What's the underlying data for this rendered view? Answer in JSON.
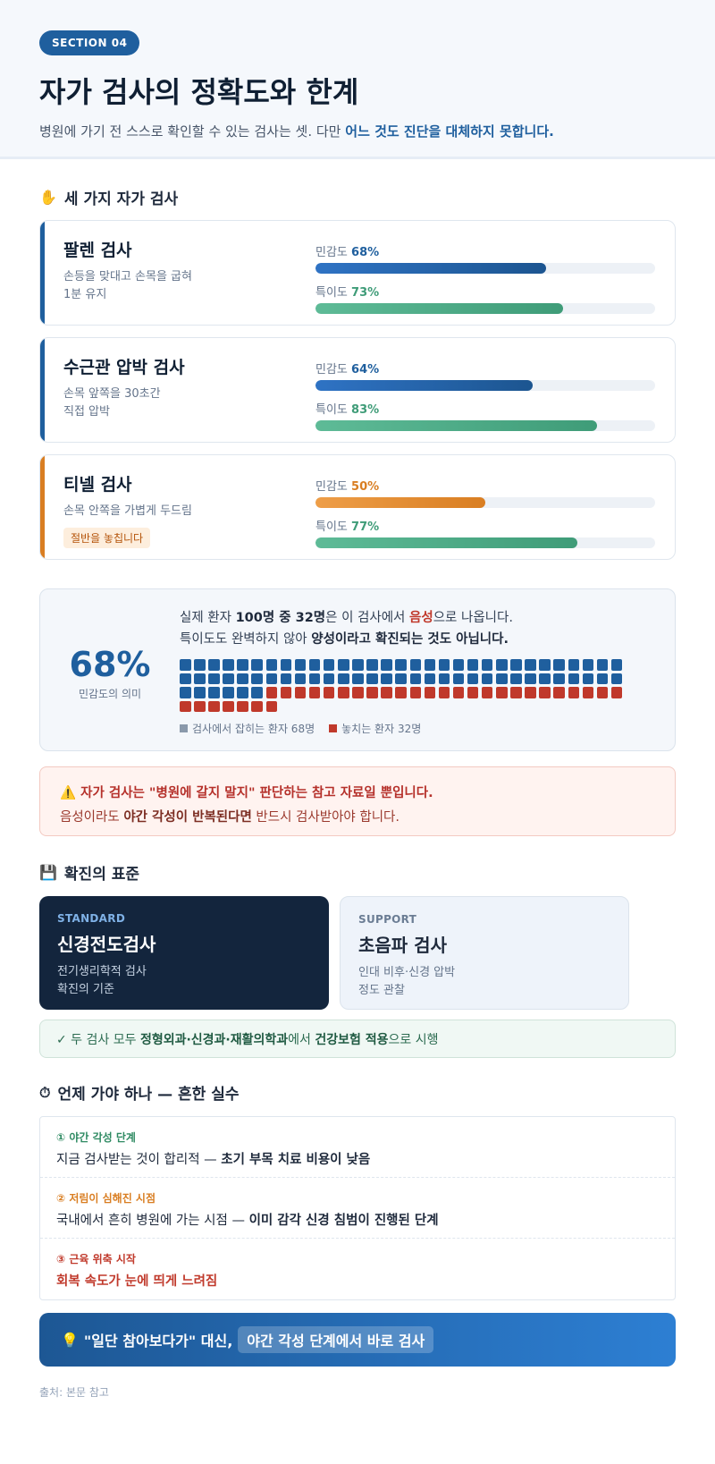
{
  "header": {
    "badge": "SECTION 04",
    "title": "자가 검사의 정확도와 한계",
    "subtitle_plain": "병원에 가기 전 스스로 확인할 수 있는 검사는 셋. 다만 ",
    "subtitle_bold": "어느 것도 진단을 대체하지 못합니다."
  },
  "tests_section": {
    "icon": "✋",
    "title": "세 가지 자가 검사",
    "sens_label": "민감도",
    "spec_label": "특이도",
    "tests": [
      {
        "name": "팔렌 검사",
        "desc": "손등을 맞대고 손목을 굽혀\n1분 유지",
        "sensitivity": 68,
        "specificity": 73,
        "sens_text": "68%",
        "spec_text": "73%",
        "tag": ""
      },
      {
        "name": "수근관 압박 검사",
        "desc": "손목 앞쪽을 30초간\n직접 압박",
        "sensitivity": 64,
        "specificity": 83,
        "sens_text": "64%",
        "spec_text": "83%",
        "tag": ""
      },
      {
        "name": "티넬 검사",
        "desc": "손목 안쪽을 가볍게 두드림",
        "sensitivity": 50,
        "specificity": 77,
        "sens_text": "50%",
        "spec_text": "77%",
        "tag": "절반을 놓칩니다"
      }
    ],
    "colors": {
      "blue": "#1f5f9e",
      "orange": "#d97e22",
      "green": "#3f9c78"
    }
  },
  "sensitivity_box": {
    "big": "68%",
    "big_sub": "민감도의 의미",
    "line1_a": "실제 환자 ",
    "line1_b": "100명 중 32명",
    "line1_c": "은 이 검사에서 ",
    "line1_d": "음성",
    "line1_e": "으로 나옵니다.",
    "line2_a": "특이도도 완벽하지 않아 ",
    "line2_b": "양성이라고 확진되는 것도 아닙니다.",
    "caught": 68,
    "missed": 32,
    "legend_caught": "검사에서 잡히는 환자 68명",
    "legend_missed": "놓치는 환자 32명"
  },
  "alert": {
    "icon": "⚠️",
    "line1": "자가 검사는 \"병원에 갈지 말지\" 판단하는 참고 자료일 뿐입니다.",
    "line2_a": "음성이라도 ",
    "line2_b": "야간 각성이 반복된다면",
    "line2_c": " 반드시 검사받아야 합니다."
  },
  "standard_section": {
    "icon": "💾",
    "title": "확진의 표준",
    "cards": [
      {
        "kicker": "STANDARD",
        "name": "신경전도검사",
        "desc": "전기생리학적 검사\n확진의 기준"
      },
      {
        "kicker": "SUPPORT",
        "name": "초음파 검사",
        "desc": "인대 비후·신경 압박\n정도 관찰"
      }
    ],
    "note_a": "✓ 두 검사 모두 ",
    "note_b": "정형외과·신경과·재활의학과",
    "note_c": "에서 ",
    "note_d": "건강보험 적용",
    "note_e": "으로 시행"
  },
  "when_section": {
    "icon": "⏱",
    "title": "언제 가야 하나 — 흔한 실수",
    "steps": [
      {
        "kicker": "① 야간 각성 단계",
        "text_a": "지금 검사받는 것이 합리적 — ",
        "text_b": "초기 부목 치료 비용이 낮음",
        "color": "#2e8a62"
      },
      {
        "kicker": "② 저림이 심해진 시점",
        "text_a": "국내에서 흔히 병원에 가는 시점 — ",
        "text_b": "이미 감각 신경 침범이 진행된 단계",
        "color": "#d97e22"
      },
      {
        "kicker": "③ 근육 위축 시작",
        "text_a": "",
        "text_b": "회복 속도가 눈에 띄게 느려짐",
        "color": "#c0392b"
      }
    ]
  },
  "banner": {
    "icon": "💡",
    "text": "\"일단 참아보다가\" 대신,",
    "highlight": "야간 각성 단계에서 바로 검사"
  },
  "source": "출처: 본문 참고"
}
